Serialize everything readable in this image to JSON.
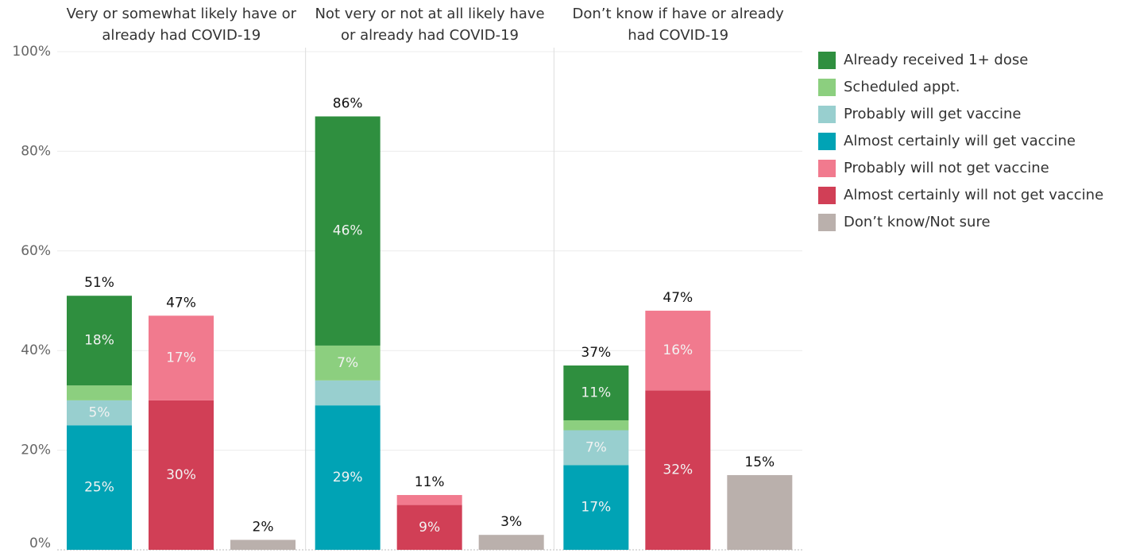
{
  "chart_data": {
    "type": "bar",
    "stacked": true,
    "panels": [
      {
        "title": [
          "Very or somewhat likely have or",
          "already had COVID-19"
        ]
      },
      {
        "title": [
          "Not very or not at all likely have",
          "or already had COVID-19"
        ]
      },
      {
        "title": [
          "Don’t know if have or already",
          "had COVID-19"
        ]
      }
    ],
    "series": [
      {
        "name": "Already received 1+ dose",
        "color": "#2f8f3f",
        "values": [
          18,
          null,
          null,
          46,
          null,
          null,
          11,
          null,
          null
        ],
        "value_labels": [
          "18%",
          null,
          null,
          "46%",
          null,
          null,
          "11%",
          null,
          null
        ]
      },
      {
        "name": "Scheduled appt.",
        "color": "#8ccf7f",
        "values": [
          3,
          null,
          null,
          7,
          null,
          null,
          2,
          null,
          null
        ],
        "value_labels": [
          null,
          null,
          null,
          "7%",
          null,
          null,
          null,
          null,
          null
        ]
      },
      {
        "name": "Probably will get vaccine",
        "color": "#98cfcf",
        "values": [
          5,
          null,
          null,
          5,
          null,
          null,
          7,
          null,
          null
        ],
        "value_labels": [
          "5%",
          null,
          null,
          null,
          null,
          null,
          "7%",
          null,
          null
        ]
      },
      {
        "name": "Almost certainly will get vaccine",
        "color": "#00a3b5",
        "values": [
          25,
          null,
          null,
          29,
          null,
          null,
          17,
          null,
          null
        ],
        "value_labels": [
          "25%",
          null,
          null,
          "29%",
          null,
          null,
          "17%",
          null,
          null
        ]
      },
      {
        "name": "Probably will not get vaccine",
        "color": "#f17a8e",
        "values": [
          null,
          17,
          null,
          null,
          2,
          null,
          null,
          16,
          null
        ],
        "value_labels": [
          null,
          "17%",
          null,
          null,
          null,
          null,
          null,
          "16%",
          null
        ]
      },
      {
        "name": "Almost certainly will not get vaccine",
        "color": "#d13f56",
        "values": [
          null,
          30,
          null,
          null,
          9,
          null,
          null,
          32,
          null
        ],
        "value_labels": [
          null,
          "30%",
          null,
          null,
          "9%",
          null,
          null,
          "32%",
          null
        ]
      },
      {
        "name": "Don’t know/Not sure",
        "color": "#bab0ac",
        "values": [
          null,
          null,
          2,
          null,
          null,
          3,
          null,
          null,
          15
        ],
        "value_labels": [
          null,
          null,
          null,
          null,
          null,
          null,
          null,
          null,
          null
        ]
      }
    ],
    "totals": [
      51,
      47,
      2,
      86,
      11,
      3,
      37,
      47,
      15
    ],
    "total_labels": [
      "51%",
      "47%",
      "2%",
      "86%",
      "11%",
      "3%",
      "37%",
      "47%",
      "15%"
    ],
    "ylim": [
      0,
      100
    ],
    "yticks": [
      {
        "value": 0,
        "label": "0%"
      },
      {
        "value": 20,
        "label": "20%"
      },
      {
        "value": 40,
        "label": "40%"
      },
      {
        "value": 60,
        "label": "60%"
      },
      {
        "value": 80,
        "label": "80%"
      },
      {
        "value": 100,
        "label": "100%"
      }
    ],
    "grid": true
  }
}
